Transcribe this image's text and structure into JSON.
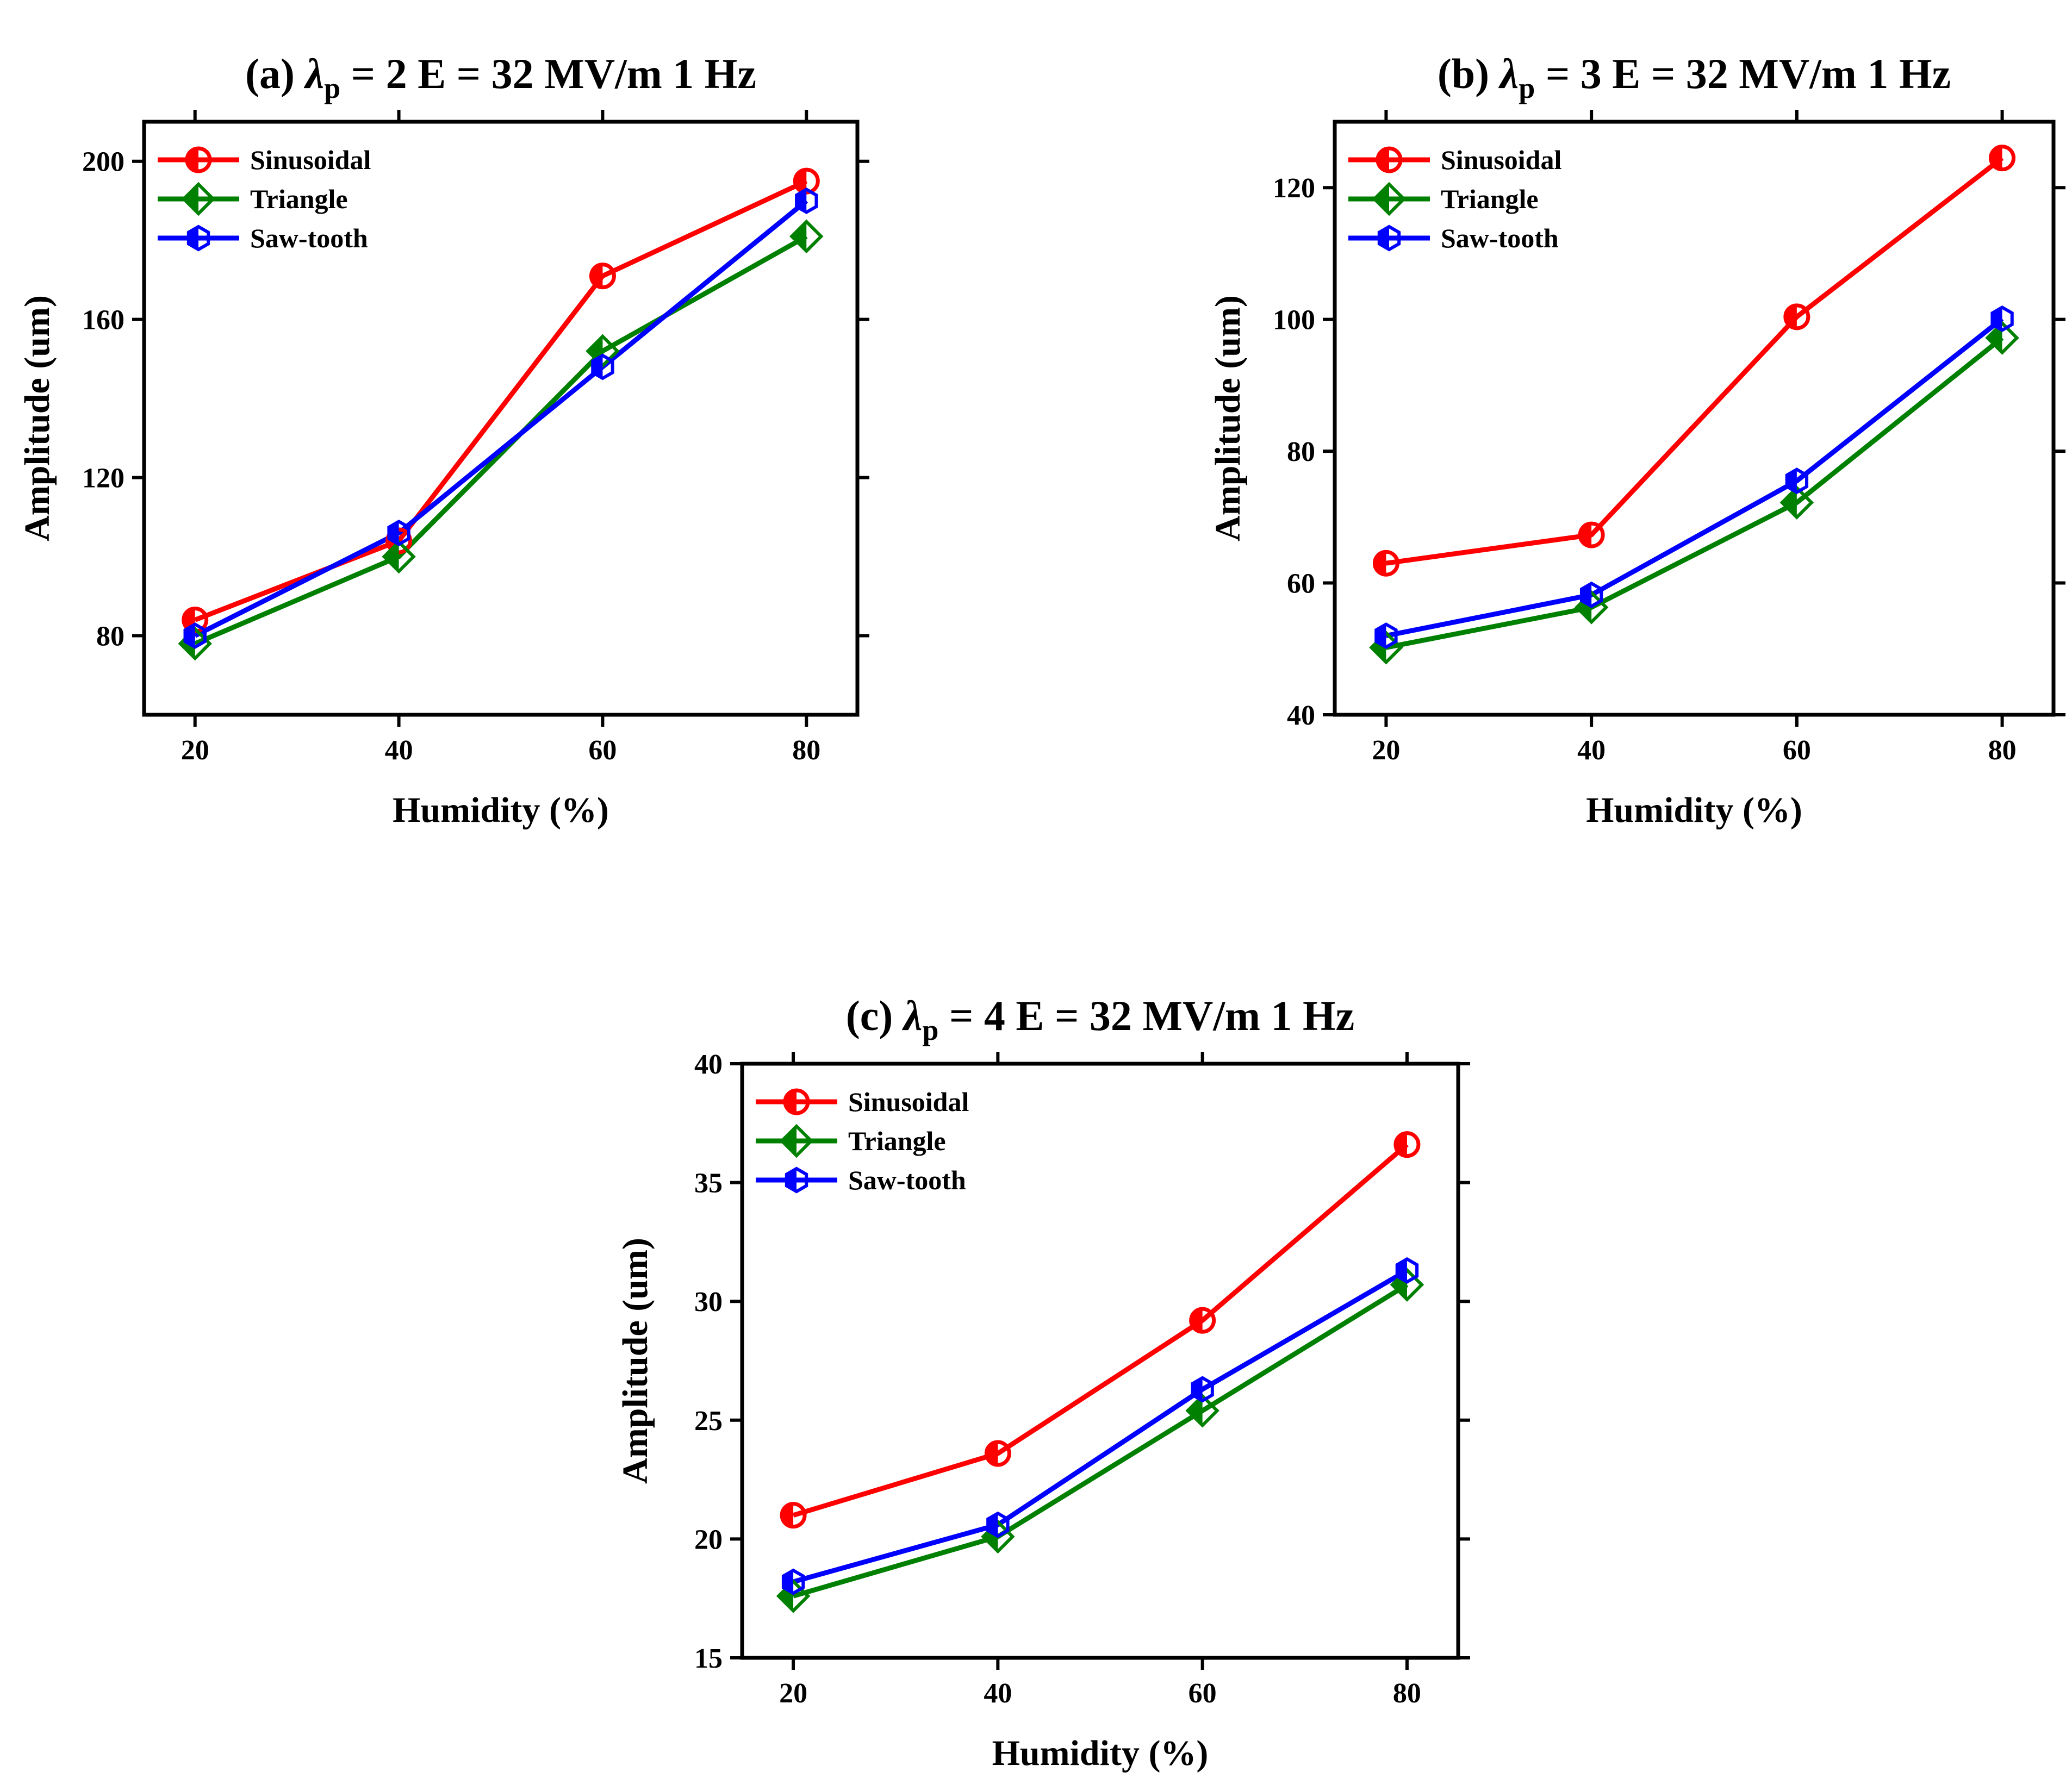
{
  "chart_data": [
    {
      "type": "line",
      "title_prefix": "(a) ",
      "title_lambda": "λ",
      "title_sub": "p",
      "title_rest": " = 2  E = 32 MV/m  1 Hz",
      "xlabel": "Humidity (%)",
      "ylabel": "Amplitude (um)",
      "x": [
        20,
        40,
        60,
        80
      ],
      "xlim": [
        15,
        85
      ],
      "ylim": [
        60,
        210
      ],
      "xticks": [
        20,
        40,
        60,
        80
      ],
      "yticks": [
        80,
        120,
        160,
        200
      ],
      "legend_position": "top-left",
      "series": [
        {
          "name": "Sinusoidal",
          "color": "#ff0000",
          "marker": "circle",
          "values": [
            84,
            104,
            171,
            195
          ]
        },
        {
          "name": "Triangle",
          "color": "#008000",
          "marker": "diamond",
          "values": [
            78,
            100,
            152,
            181
          ]
        },
        {
          "name": "Saw-tooth",
          "color": "#0000ff",
          "marker": "hexagon",
          "values": [
            80,
            106,
            148,
            190
          ]
        }
      ]
    },
    {
      "type": "line",
      "title_prefix": "(b) ",
      "title_lambda": "λ",
      "title_sub": "p",
      "title_rest": " = 3  E = 32 MV/m  1 Hz",
      "xlabel": "Humidity (%)",
      "ylabel": "Amplitude (um)",
      "x": [
        20,
        40,
        60,
        80
      ],
      "xlim": [
        15,
        85
      ],
      "ylim": [
        40,
        130
      ],
      "xticks": [
        20,
        40,
        60,
        80
      ],
      "yticks": [
        40,
        60,
        80,
        100,
        120
      ],
      "legend_position": "top-left",
      "series": [
        {
          "name": "Sinusoidal",
          "color": "#ff0000",
          "marker": "circle",
          "values": [
            63,
            67.3,
            100.4,
            124.5
          ]
        },
        {
          "name": "Triangle",
          "color": "#008000",
          "marker": "diamond",
          "values": [
            50.2,
            56.3,
            72.2,
            97.2
          ]
        },
        {
          "name": "Saw-tooth",
          "color": "#0000ff",
          "marker": "hexagon",
          "values": [
            52,
            58.2,
            75.5,
            100.1
          ]
        }
      ]
    },
    {
      "type": "line",
      "title_prefix": "(c) ",
      "title_lambda": "λ",
      "title_sub": "p",
      "title_rest": " = 4  E = 32 MV/m  1 Hz",
      "xlabel": "Humidity (%)",
      "ylabel": "Amplitude (um)",
      "x": [
        20,
        40,
        60,
        80
      ],
      "xlim": [
        15,
        85
      ],
      "ylim": [
        15,
        40
      ],
      "xticks": [
        20,
        40,
        60,
        80
      ],
      "yticks": [
        15,
        20,
        25,
        30,
        35,
        40
      ],
      "legend_position": "top-left",
      "series": [
        {
          "name": "Sinusoidal",
          "color": "#ff0000",
          "marker": "circle",
          "values": [
            21,
            23.6,
            29.2,
            36.6
          ]
        },
        {
          "name": "Triangle",
          "color": "#008000",
          "marker": "diamond",
          "values": [
            17.6,
            20.1,
            25.4,
            30.7
          ]
        },
        {
          "name": "Saw-tooth",
          "color": "#0000ff",
          "marker": "hexagon",
          "values": [
            18.2,
            20.6,
            26.3,
            31.3
          ]
        }
      ]
    }
  ]
}
